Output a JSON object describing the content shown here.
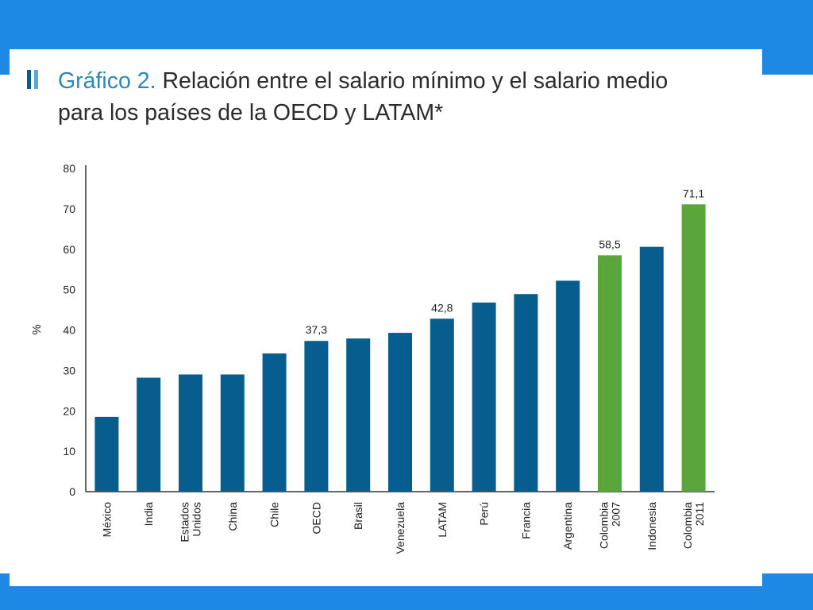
{
  "title": {
    "prefix": "Gráfico 2.",
    "line1_rest": "Relación entre el salario mínimo y el salario medio",
    "line2": "para los países de la OECD y LATAM*"
  },
  "colors": {
    "frame": "#1e88e5",
    "bar_default": "#075d8e",
    "bar_highlight": "#5ba63a"
  },
  "chart_data": {
    "type": "bar",
    "ylabel": "%",
    "xlabel": "",
    "ylim": [
      0,
      80
    ],
    "yticks": [
      "0",
      "10",
      "20",
      "30",
      "40",
      "50",
      "60",
      "70",
      "80"
    ],
    "grid": false,
    "categories": [
      [
        "México"
      ],
      [
        "India"
      ],
      [
        "Estados",
        "Unidos"
      ],
      [
        "China"
      ],
      [
        "Chile"
      ],
      [
        "OECD"
      ],
      [
        "Brasil"
      ],
      [
        "Venezuela"
      ],
      [
        "LATAM"
      ],
      [
        "Perú"
      ],
      [
        "Francia"
      ],
      [
        "Argentina"
      ],
      [
        "Colombia",
        "2007"
      ],
      [
        "Indonesia"
      ],
      [
        "Colombia",
        "2011"
      ]
    ],
    "values": [
      18.5,
      28.2,
      29.0,
      29.0,
      34.2,
      37.3,
      37.9,
      39.3,
      42.8,
      46.8,
      48.9,
      52.2,
      58.5,
      60.6,
      71.1
    ],
    "highlight": [
      false,
      false,
      false,
      false,
      false,
      false,
      false,
      false,
      false,
      false,
      false,
      false,
      true,
      false,
      true
    ],
    "value_labels": [
      "",
      "",
      "",
      "",
      "",
      "37,3",
      "",
      "",
      "42,8",
      "",
      "",
      "",
      "58,5",
      "",
      "71,1"
    ]
  }
}
